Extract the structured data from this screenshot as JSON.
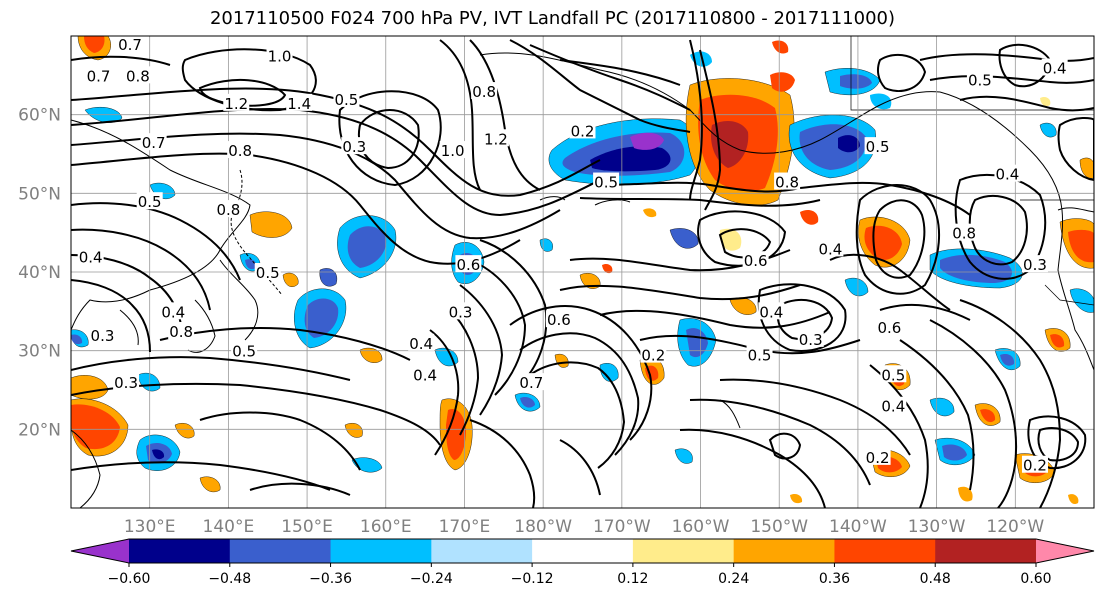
{
  "title": "2017110500 F024 700 hPa PV, IVT Landfall PC (2017110800 - 2017111000)",
  "map": {
    "lon_min": 120,
    "lon_max": 250,
    "lat_min": 10,
    "lat_max": 70,
    "gridline_lons": [
      130,
      140,
      150,
      160,
      170,
      180,
      190,
      200,
      210,
      220,
      230,
      240
    ],
    "gridline_lats": [
      20,
      30,
      40,
      50,
      60
    ],
    "lon_tick_labels": [
      {
        "lon": 130,
        "label": "130°E"
      },
      {
        "lon": 140,
        "label": "140°E"
      },
      {
        "lon": 150,
        "label": "150°E"
      },
      {
        "lon": 160,
        "label": "160°E"
      },
      {
        "lon": 170,
        "label": "170°E"
      },
      {
        "lon": 180,
        "label": "180°W"
      },
      {
        "lon": 190,
        "label": "170°W"
      },
      {
        "lon": 200,
        "label": "160°W"
      },
      {
        "lon": 210,
        "label": "150°W"
      },
      {
        "lon": 220,
        "label": "140°W"
      },
      {
        "lon": 230,
        "label": "130°W"
      },
      {
        "lon": 240,
        "label": "120°W"
      }
    ],
    "lat_tick_labels": [
      {
        "lat": 20,
        "label": "20°N"
      },
      {
        "lat": 30,
        "label": "30°N"
      },
      {
        "lat": 40,
        "label": "40°N"
      },
      {
        "lat": 50,
        "label": "50°N"
      },
      {
        "lat": 60,
        "label": "60°N"
      }
    ],
    "tick_label_color": "#808080",
    "gridline_color": "#999999",
    "contour_color": "#000000"
  },
  "colorbar": {
    "colors": [
      "#9932cc",
      "#00008b",
      "#3a5fcd",
      "#00bfff",
      "#b0e2ff",
      "#ffffff",
      "#ffec8b",
      "#ffa500",
      "#ff4500",
      "#b22222",
      "#ff88aa"
    ],
    "tick_labels": [
      "−0.60",
      "−0.48",
      "−0.36",
      "−0.24",
      "−0.12",
      "0.12",
      "0.24",
      "0.36",
      "0.48",
      "0.60"
    ]
  },
  "contour_labels": [
    {
      "text": "1.0",
      "lon": 146.5,
      "lat": 67.5
    },
    {
      "text": "0.7",
      "lon": 127.5,
      "lat": 69
    },
    {
      "text": "0.7",
      "lon": 123.5,
      "lat": 65
    },
    {
      "text": "0.8",
      "lon": 128.5,
      "lat": 65
    },
    {
      "text": "1.2",
      "lon": 141,
      "lat": 61.5
    },
    {
      "text": "1.4",
      "lon": 149,
      "lat": 61.5
    },
    {
      "text": "0.5",
      "lon": 155,
      "lat": 62
    },
    {
      "text": "0.3",
      "lon": 156,
      "lat": 56
    },
    {
      "text": "0.7",
      "lon": 130.5,
      "lat": 56.5
    },
    {
      "text": "0.8",
      "lon": 141.5,
      "lat": 55.5
    },
    {
      "text": "0.5",
      "lon": 130,
      "lat": 49
    },
    {
      "text": "1.0",
      "lon": 168.5,
      "lat": 55.5
    },
    {
      "text": "1.2",
      "lon": 174,
      "lat": 57
    },
    {
      "text": "0.8",
      "lon": 172.5,
      "lat": 63
    },
    {
      "text": "0.2",
      "lon": 185,
      "lat": 58
    },
    {
      "text": "0.5",
      "lon": 188,
      "lat": 51.5
    },
    {
      "text": "0.8",
      "lon": 211,
      "lat": 51.5
    },
    {
      "text": "0.5",
      "lon": 222.5,
      "lat": 56
    },
    {
      "text": "0.5",
      "lon": 235.5,
      "lat": 64.5
    },
    {
      "text": "0.4",
      "lon": 245,
      "lat": 66
    },
    {
      "text": "0.4",
      "lon": 239,
      "lat": 52.5
    },
    {
      "text": "0.8",
      "lon": 233.5,
      "lat": 45
    },
    {
      "text": "0.3",
      "lon": 242.5,
      "lat": 41
    },
    {
      "text": "0.4",
      "lon": 216.5,
      "lat": 43
    },
    {
      "text": "0.6",
      "lon": 207,
      "lat": 41.5
    },
    {
      "text": "0.6",
      "lon": 170.5,
      "lat": 41
    },
    {
      "text": "0.3",
      "lon": 169.5,
      "lat": 35
    },
    {
      "text": "0.6",
      "lon": 182,
      "lat": 34
    },
    {
      "text": "0.4",
      "lon": 209,
      "lat": 35
    },
    {
      "text": "0.3",
      "lon": 214,
      "lat": 31.5
    },
    {
      "text": "0.6",
      "lon": 224,
      "lat": 33
    },
    {
      "text": "0.5",
      "lon": 207.5,
      "lat": 29.5
    },
    {
      "text": "0.2",
      "lon": 194,
      "lat": 29.5
    },
    {
      "text": "0.7",
      "lon": 178.5,
      "lat": 26
    },
    {
      "text": "0.5",
      "lon": 224.5,
      "lat": 27
    },
    {
      "text": "0.4",
      "lon": 224.5,
      "lat": 23
    },
    {
      "text": "0.2",
      "lon": 222.5,
      "lat": 16.5
    },
    {
      "text": "0.2",
      "lon": 242.5,
      "lat": 15.5
    },
    {
      "text": "0.4",
      "lon": 164.5,
      "lat": 31
    },
    {
      "text": "0.5",
      "lon": 142,
      "lat": 30
    },
    {
      "text": "0.4",
      "lon": 133,
      "lat": 35
    },
    {
      "text": "0.8",
      "lon": 134,
      "lat": 32.5
    },
    {
      "text": "0.3",
      "lon": 127,
      "lat": 26
    },
    {
      "text": "0.4",
      "lon": 165,
      "lat": 27
    },
    {
      "text": "0.5",
      "lon": 145,
      "lat": 40
    },
    {
      "text": "0.8",
      "lon": 140,
      "lat": 48
    },
    {
      "text": "0.4",
      "lon": 122.5,
      "lat": 42
    },
    {
      "text": "0.3",
      "lon": 124,
      "lat": 32
    }
  ]
}
